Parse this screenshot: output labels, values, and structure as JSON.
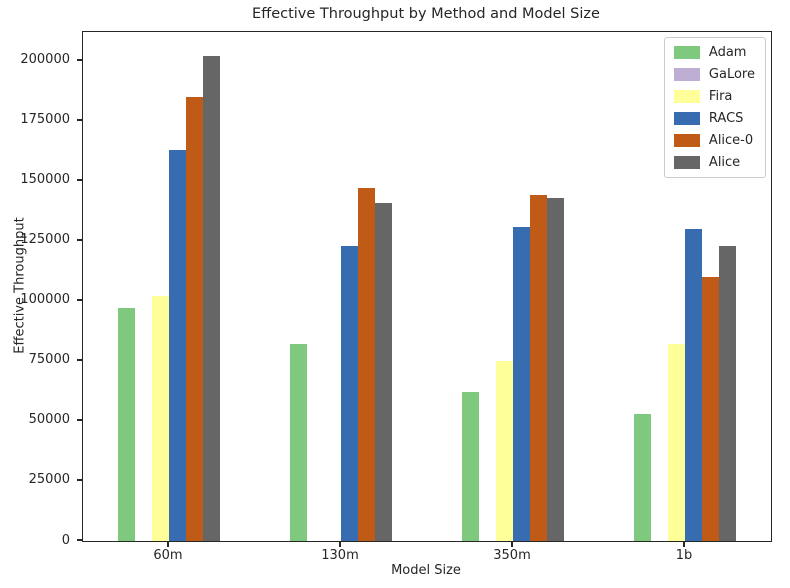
{
  "chart_data": {
    "type": "bar",
    "title": "Effective Throughput by Method and Model Size",
    "xlabel": "Model Size",
    "ylabel": "Effective Throughput",
    "categories": [
      "60m",
      "130m",
      "350m",
      "1b"
    ],
    "series": [
      {
        "name": "Adam",
        "color": "#7fc97f",
        "values": [
          97000,
          82000,
          62000,
          53000
        ]
      },
      {
        "name": "GaLore",
        "color": "#beaed4",
        "values": [
          0,
          0,
          0,
          0
        ]
      },
      {
        "name": "Fira",
        "color": "#ffff99",
        "values": [
          102000,
          0,
          75000,
          82000
        ]
      },
      {
        "name": "RACS",
        "color": "#386cb0",
        "values": [
          163000,
          123000,
          131000,
          130000
        ]
      },
      {
        "name": "Alice-0",
        "color": "#bf5b17",
        "values": [
          185000,
          147000,
          144000,
          110000
        ]
      },
      {
        "name": "Alice",
        "color": "#666666",
        "values": [
          202000,
          141000,
          143000,
          123000
        ]
      }
    ],
    "ylim": [
      0,
      212000
    ],
    "yticks": [
      0,
      25000,
      50000,
      75000,
      100000,
      125000,
      150000,
      175000,
      200000
    ],
    "legend_position": "upper right",
    "grid": false
  }
}
